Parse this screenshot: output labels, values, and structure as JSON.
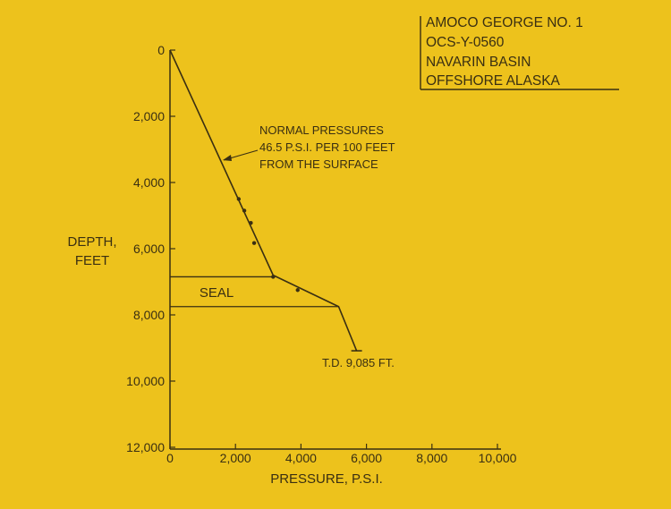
{
  "chart_data": {
    "type": "line",
    "info_box": [
      "AMOCO GEORGE NO. 1",
      "OCS-Y-0560",
      "NAVARIN BASIN",
      "OFFSHORE ALASKA"
    ],
    "xlabel": "PRESSURE, P.S.I.",
    "ylabel": [
      "DEPTH,",
      "FEET"
    ],
    "xlim": [
      0,
      10000
    ],
    "ylim": [
      0,
      12000
    ],
    "y_inverted": true,
    "x_ticks": [
      "0",
      "2,000",
      "4,000",
      "6,000",
      "8,000",
      "10,000"
    ],
    "y_ticks": [
      "0",
      "2,000",
      "4,000",
      "6,000",
      "8,000",
      "10,000",
      "12,000"
    ],
    "series": [
      {
        "type": "line",
        "points": [
          {
            "x": 0,
            "y": 0
          },
          {
            "x": 3150,
            "y": 6800
          },
          {
            "x": 5150,
            "y": 7750
          },
          {
            "x": 5700,
            "y": 9085
          }
        ]
      },
      {
        "type": "scatter",
        "points": [
          {
            "x": 2100,
            "y": 4500
          },
          {
            "x": 2270,
            "y": 4850
          },
          {
            "x": 2470,
            "y": 5220
          },
          {
            "x": 2570,
            "y": 5830
          },
          {
            "x": 3150,
            "y": 6850
          },
          {
            "x": 3900,
            "y": 7250
          }
        ]
      }
    ],
    "seal": {
      "label": "SEAL",
      "top": 6850,
      "bottom": 7750
    },
    "annotations": {
      "normal": [
        "NORMAL PRESSURES",
        "46.5 P.S.I. PER 100 FEET",
        "FROM THE SURFACE"
      ],
      "td": "T.D. 9,085 FT."
    },
    "grid": false,
    "legend": "none"
  }
}
